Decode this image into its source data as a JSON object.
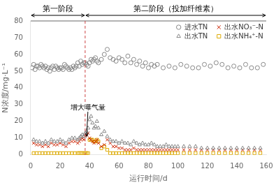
{
  "chart_data": {
    "type": "scatter",
    "xlabel": "运行时间/d",
    "ylabel": "N浓度/mg·L⁻¹",
    "xlim": [
      0,
      160
    ],
    "ylim": [
      0,
      80
    ],
    "xticks": [
      0,
      20,
      40,
      60,
      80,
      100,
      120,
      140,
      160
    ],
    "yticks": [
      0,
      10,
      20,
      30,
      40,
      50,
      60,
      70,
      80
    ],
    "grid": false,
    "legend": "upper right",
    "phases": [
      {
        "label": "第一阶段",
        "from": 0,
        "to": 37
      },
      {
        "label": "第二阶段（投加纤维素）",
        "from": 37,
        "to": 160
      }
    ],
    "vlines": [
      {
        "x": 37,
        "color": "#cc4444",
        "line_style": "dashed"
      }
    ],
    "annotations": [
      {
        "text": "增大曝气量",
        "x": 38,
        "y": 11,
        "text_x": 27,
        "text_y": 27
      }
    ],
    "series": [
      {
        "name": "进水TN",
        "color": "#888888",
        "marker": "circle",
        "x": [
          1,
          2,
          3,
          4,
          5,
          6,
          7,
          8,
          9,
          10,
          11,
          12,
          13,
          14,
          15,
          16,
          17,
          18,
          19,
          20,
          21,
          22,
          23,
          24,
          25,
          26,
          27,
          28,
          29,
          30,
          31,
          32,
          33,
          34,
          35,
          36,
          37,
          38,
          39,
          40,
          41,
          42,
          43,
          44,
          45,
          46,
          48,
          50,
          52,
          54,
          56,
          58,
          60,
          62,
          64,
          66,
          68,
          70,
          72,
          74,
          76,
          78,
          80,
          82,
          84,
          86,
          90,
          94,
          98,
          102,
          106,
          110,
          114,
          118,
          122,
          126,
          130,
          134,
          138,
          142,
          146,
          150,
          154,
          158
        ],
        "values": [
          52,
          54,
          51,
          53,
          53,
          52,
          54,
          53,
          52,
          53,
          51,
          52,
          50,
          52,
          53,
          51,
          53,
          52,
          51,
          52,
          52,
          51,
          54,
          53,
          52,
          51,
          52,
          51,
          53,
          52,
          53,
          55,
          53,
          56,
          54,
          55,
          55,
          54,
          53,
          55,
          57,
          56,
          57,
          58,
          56,
          55,
          57,
          60,
          63,
          58,
          57,
          56,
          58,
          57,
          55,
          59,
          55,
          57,
          54,
          56,
          53,
          55,
          52,
          54,
          53,
          54,
          52,
          53,
          52,
          54,
          53,
          52,
          52,
          54,
          53,
          55,
          54,
          52,
          53,
          52,
          54,
          52,
          52,
          54
        ]
      },
      {
        "name": "出水TN",
        "color": "#888888",
        "marker": "triangle",
        "x": [
          2,
          4,
          6,
          8,
          10,
          12,
          14,
          16,
          18,
          20,
          22,
          24,
          26,
          28,
          30,
          32,
          33,
          34,
          35,
          36,
          37,
          38,
          39,
          40,
          41,
          42,
          43,
          44,
          45,
          46,
          48,
          50,
          52,
          54,
          56,
          58,
          60,
          62,
          64,
          66,
          68,
          70,
          72,
          74,
          76,
          78,
          80,
          82,
          84,
          86,
          88,
          90,
          92,
          94,
          96,
          98,
          100,
          104,
          108,
          112,
          116,
          120,
          124,
          128,
          132,
          136,
          140,
          144,
          148,
          152,
          156
        ],
        "values": [
          9,
          8,
          8,
          7,
          8,
          7,
          9,
          8,
          8,
          9,
          8,
          7,
          9,
          10,
          10,
          9,
          10,
          11,
          12,
          11,
          13,
          14,
          16,
          21,
          23,
          19,
          16,
          17,
          20,
          16,
          12,
          14,
          11,
          9,
          8,
          8,
          7,
          8,
          7,
          7,
          6,
          8,
          7,
          6,
          7,
          6,
          6,
          7,
          6,
          5,
          5,
          5,
          6,
          5,
          5,
          5,
          5,
          5,
          5,
          5,
          4,
          4,
          4,
          4,
          4,
          4,
          4,
          4,
          4,
          4,
          4
        ]
      },
      {
        "name": "出水NO₃⁻-N",
        "color": "#cc2200",
        "marker": "x",
        "x": [
          2,
          4,
          6,
          8,
          10,
          12,
          14,
          16,
          18,
          20,
          22,
          24,
          26,
          28,
          30,
          32,
          33,
          34,
          35,
          36,
          37,
          38,
          39,
          40,
          41,
          42,
          43,
          44,
          45,
          46,
          48,
          50,
          52,
          54,
          56,
          58,
          60,
          62,
          64,
          66,
          68,
          70,
          72,
          74,
          76,
          78,
          80,
          82,
          84,
          86,
          88,
          90,
          92,
          94,
          96,
          98,
          100,
          104,
          108,
          112,
          116,
          120,
          124,
          128,
          132,
          136,
          140,
          144,
          148,
          152,
          156
        ],
        "values": [
          7,
          6,
          6,
          5,
          6,
          5,
          7,
          6,
          6,
          7,
          6,
          5,
          7,
          8,
          8,
          7,
          8,
          9,
          10,
          9,
          11,
          12,
          13,
          10,
          9,
          8,
          7,
          8,
          9,
          7,
          5,
          6,
          9,
          7,
          5,
          5,
          4,
          4,
          3,
          3,
          3,
          4,
          3,
          3,
          3,
          3,
          3,
          3,
          3,
          3,
          3,
          3,
          3,
          3,
          3,
          3,
          3,
          3,
          3,
          3,
          3,
          3,
          3,
          3,
          3,
          3,
          3,
          3,
          3,
          3,
          3
        ]
      },
      {
        "name": "出水NH₄⁺-N",
        "color": "#ddaa00",
        "marker": "square",
        "x": [
          2,
          4,
          6,
          8,
          10,
          12,
          14,
          16,
          18,
          20,
          22,
          24,
          26,
          28,
          30,
          32,
          33,
          34,
          35,
          36,
          37,
          38,
          39,
          40,
          41,
          42,
          43,
          44,
          45,
          46,
          48,
          50,
          52,
          54,
          56,
          58,
          60,
          62,
          64,
          66,
          68,
          70,
          72,
          74,
          76,
          78,
          80,
          82,
          84,
          86,
          88,
          90,
          92,
          94,
          96,
          98,
          100,
          104,
          108,
          112,
          116,
          120,
          124,
          128,
          132,
          136,
          140,
          144,
          148,
          152,
          156
        ],
        "values": [
          1,
          1,
          1,
          1,
          1,
          1,
          1,
          1,
          1,
          1,
          1,
          1,
          1,
          1,
          1,
          1,
          1,
          1,
          1,
          1,
          1,
          1,
          1,
          9,
          9,
          9,
          8,
          8,
          9,
          8,
          4,
          5,
          3,
          1,
          1,
          1,
          1,
          1,
          1,
          1,
          1,
          1,
          1,
          1,
          1,
          1,
          1,
          1,
          1,
          1,
          1,
          1,
          1,
          1,
          1,
          1,
          1,
          1,
          1,
          1,
          1,
          1,
          1,
          1,
          1,
          1,
          1,
          1,
          1,
          1,
          1
        ]
      }
    ]
  }
}
